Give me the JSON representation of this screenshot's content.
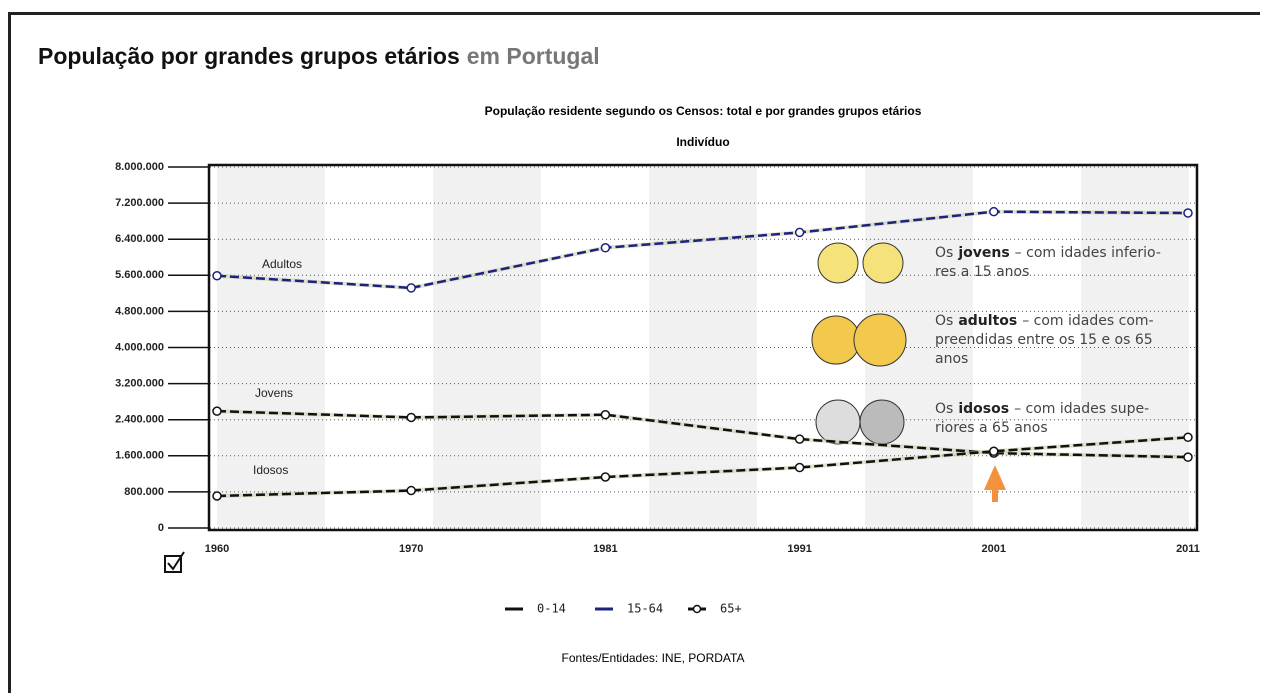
{
  "header": {
    "title": "População por grandes grupos etários",
    "title_suffix": "em Portugal"
  },
  "chart_data": {
    "type": "line",
    "title": "População residente segundo os Censos: total e por grandes grupos etários",
    "subtitle": "Indivíduo",
    "categories": [
      "1960",
      "1970",
      "1981",
      "1991",
      "2001",
      "2011"
    ],
    "ylim": [
      0,
      8000000
    ],
    "yticks": [
      0,
      {
        "value": 800000,
        "label": "800.000"
      },
      {
        "value": 1600000,
        "label": "1.600.000"
      },
      {
        "value": 2400000,
        "label": "2.400.000"
      },
      {
        "value": 3200000,
        "label": "3.200.000"
      },
      {
        "value": 4000000,
        "label": "4.000.000"
      },
      {
        "value": 4800000,
        "label": "4.800.000"
      },
      {
        "value": 5600000,
        "label": "5.600.000"
      },
      {
        "value": 6400000,
        "label": "6.400.000"
      },
      {
        "value": 7200000,
        "label": "7.200.000"
      },
      {
        "value": 8000000,
        "label": "8.000.000"
      }
    ],
    "grid": true,
    "series": [
      {
        "name": "0-14",
        "color": "#111111",
        "values": [
          2590000,
          2450000,
          2510000,
          1970000,
          1660000,
          1570000
        ]
      },
      {
        "name": "15-64",
        "color": "#1a237e",
        "values": [
          5590000,
          5320000,
          6210000,
          6550000,
          7010000,
          6980000
        ]
      },
      {
        "name": "65+",
        "color": "#111111",
        "values": [
          710000,
          830000,
          1130000,
          1340000,
          1700000,
          2010000
        ]
      }
    ],
    "annotations": [
      "Adultos",
      "Jovens",
      "Idosos"
    ],
    "notes": [
      {
        "lead": "Os",
        "bold": "jovens",
        "lines": [
          "– com idades inferio-",
          "res a 15 anos"
        ]
      },
      {
        "lead": "Os",
        "bold": "adultos",
        "lines": [
          "– com idades com-",
          "preendidas entre os 15 e os 65",
          "anos"
        ]
      },
      {
        "lead": "Os",
        "bold": "idosos",
        "lines": [
          "– com idades supe-",
          "riores a 65 anos"
        ]
      }
    ],
    "source": "Fontes/Entidades: INE, PORDATA"
  }
}
